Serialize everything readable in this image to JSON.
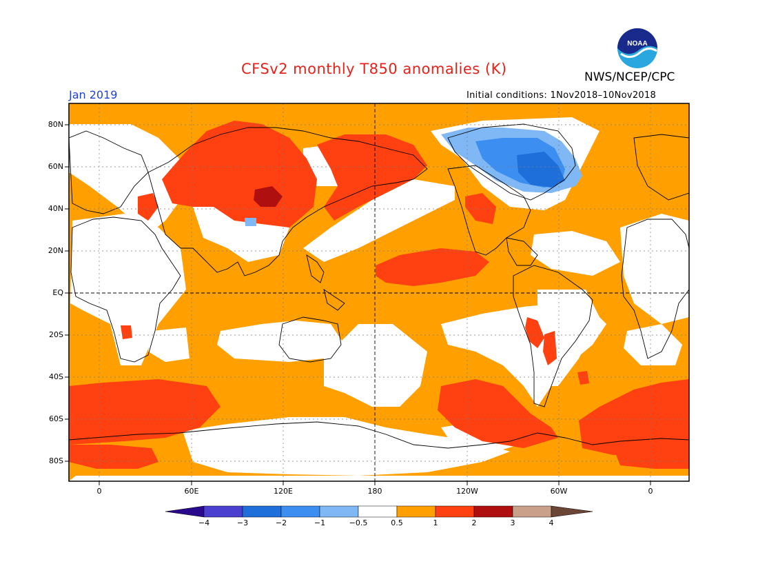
{
  "header": {
    "title": "CFSv2 monthly T850 anomalies (K)",
    "agency": "NWS/NCEP/CPC",
    "logo_text": "NOAA",
    "month": "Jan 2019",
    "initial_conditions": "Initial conditions: 1Nov2018–10Nov2018"
  },
  "axes": {
    "lat_labels": [
      "80N",
      "60N",
      "40N",
      "20N",
      "EQ",
      "20S",
      "40S",
      "60S",
      "80S"
    ],
    "lon_labels": [
      "0",
      "60E",
      "120E",
      "180",
      "120W",
      "60W",
      "0"
    ]
  },
  "colorbar": {
    "labels": [
      "−4",
      "−3",
      "−2",
      "−1",
      "−0.5",
      "0.5",
      "1",
      "2",
      "3",
      "4"
    ],
    "colors": {
      "below_-4": "#2a0a8c",
      "-4_-3": "#4a3fcf",
      "-3_-2": "#1f6fdb",
      "-2_-1": "#3c8ff0",
      "-1_-0.5": "#7fb8f5",
      "-0.5_0.5": "#ffffff",
      "0.5_1": "#ffa000",
      "1_2": "#ff4010",
      "2_3": "#b00f0f",
      "3_4": "#c9a08a",
      "above_4": "#6b4535"
    }
  }
}
